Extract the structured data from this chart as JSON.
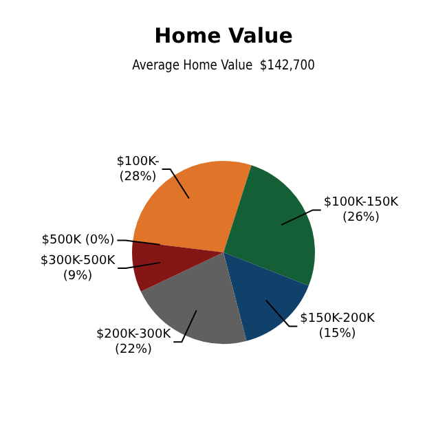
{
  "chart_data": {
    "type": "pie",
    "title": "Home Value",
    "subtitle": "Average Home Value  $142,700",
    "categories": [
      "$100K-",
      "$100K-150K",
      "$150K-200K",
      "$200K-300K",
      "$300K-500K",
      "$500K"
    ],
    "values": [
      28,
      26,
      15,
      22,
      9,
      0
    ],
    "value_labels": [
      "(28%)",
      "(26%)",
      "(15%)",
      "(22%)",
      "(9%)",
      "(0%)"
    ],
    "colors": [
      "#e07428",
      "#145f36",
      "#0f416b",
      "#606060",
      "#851616",
      "#cccccc"
    ]
  }
}
